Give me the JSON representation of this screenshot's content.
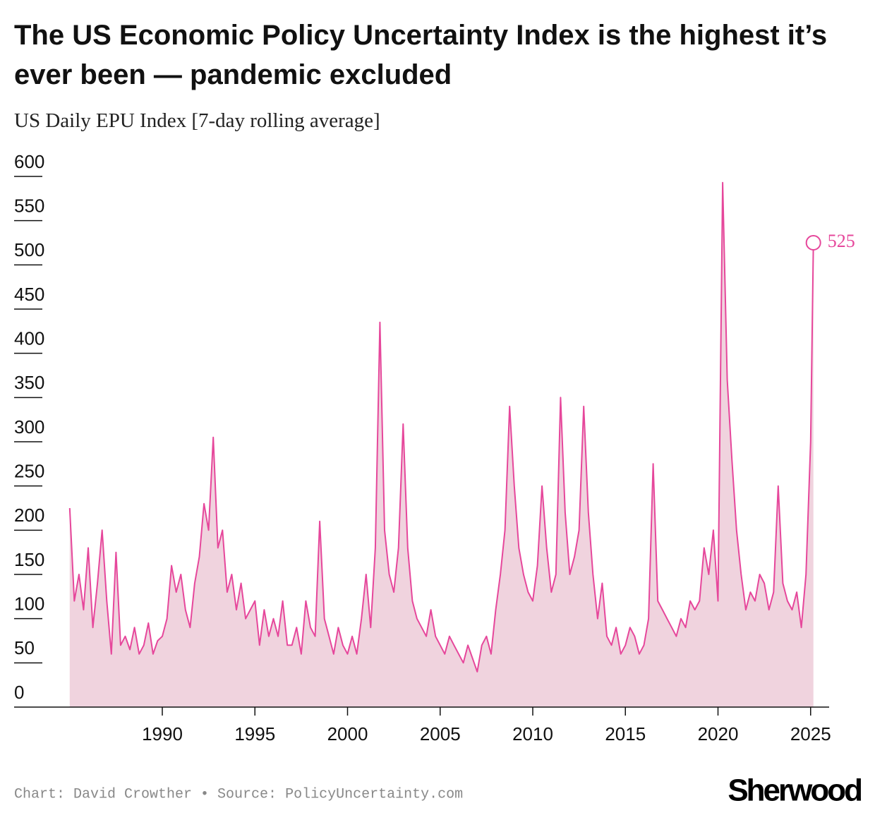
{
  "chart_data": {
    "type": "area",
    "title": "The US Economic Policy Uncertainty Index is the highest it’s ever been — pandemic excluded",
    "subtitle": "US Daily EPU Index [7-day rolling average]",
    "source": "Chart: David Crowther • Source: PolicyUncertainty.com",
    "brand": "Sherwood",
    "color": "#e6479b",
    "fill": "#f0d3de",
    "x": [
      1985,
      1985.25,
      1985.5,
      1985.75,
      1986,
      1986.25,
      1986.5,
      1986.75,
      1987,
      1987.25,
      1987.5,
      1987.75,
      1988,
      1988.25,
      1988.5,
      1988.75,
      1989,
      1989.25,
      1989.5,
      1989.75,
      1990,
      1990.25,
      1990.5,
      1990.75,
      1991,
      1991.25,
      1991.5,
      1991.75,
      1992,
      1992.25,
      1992.5,
      1992.75,
      1993,
      1993.25,
      1993.5,
      1993.75,
      1994,
      1994.25,
      1994.5,
      1994.75,
      1995,
      1995.25,
      1995.5,
      1995.75,
      1996,
      1996.25,
      1996.5,
      1996.75,
      1997,
      1997.25,
      1997.5,
      1997.75,
      1998,
      1998.25,
      1998.5,
      1998.75,
      1999,
      1999.25,
      1999.5,
      1999.75,
      2000,
      2000.25,
      2000.5,
      2000.75,
      2001,
      2001.25,
      2001.5,
      2001.75,
      2002,
      2002.25,
      2002.5,
      2002.75,
      2003,
      2003.25,
      2003.5,
      2003.75,
      2004,
      2004.25,
      2004.5,
      2004.75,
      2005,
      2005.25,
      2005.5,
      2005.75,
      2006,
      2006.25,
      2006.5,
      2006.75,
      2007,
      2007.25,
      2007.5,
      2007.75,
      2008,
      2008.25,
      2008.5,
      2008.75,
      2009,
      2009.25,
      2009.5,
      2009.75,
      2010,
      2010.25,
      2010.5,
      2010.75,
      2011,
      2011.25,
      2011.5,
      2011.75,
      2012,
      2012.25,
      2012.5,
      2012.75,
      2013,
      2013.25,
      2013.5,
      2013.75,
      2014,
      2014.25,
      2014.5,
      2014.75,
      2015,
      2015.25,
      2015.5,
      2015.75,
      2016,
      2016.25,
      2016.5,
      2016.75,
      2017,
      2017.25,
      2017.5,
      2017.75,
      2018,
      2018.25,
      2018.5,
      2018.75,
      2019,
      2019.25,
      2019.5,
      2019.75,
      2020,
      2020.25,
      2020.5,
      2020.75,
      2021,
      2021.25,
      2021.5,
      2021.75,
      2022,
      2022.25,
      2022.5,
      2022.75,
      2023,
      2023.25,
      2023.5,
      2023.75,
      2024,
      2024.25,
      2024.5,
      2024.75,
      2025,
      2025.15
    ],
    "values": [
      225,
      120,
      150,
      110,
      180,
      90,
      140,
      200,
      120,
      60,
      175,
      70,
      80,
      65,
      90,
      60,
      70,
      95,
      60,
      75,
      80,
      100,
      160,
      130,
      150,
      110,
      90,
      140,
      170,
      230,
      200,
      305,
      180,
      200,
      130,
      150,
      110,
      140,
      100,
      110,
      120,
      70,
      110,
      80,
      100,
      80,
      120,
      70,
      70,
      90,
      60,
      120,
      90,
      80,
      210,
      100,
      80,
      60,
      90,
      70,
      60,
      80,
      60,
      100,
      150,
      90,
      180,
      435,
      200,
      150,
      130,
      180,
      320,
      180,
      120,
      100,
      90,
      80,
      110,
      80,
      70,
      60,
      80,
      70,
      60,
      50,
      70,
      55,
      40,
      70,
      80,
      60,
      110,
      150,
      200,
      340,
      250,
      180,
      150,
      130,
      120,
      160,
      250,
      180,
      130,
      150,
      350,
      220,
      150,
      170,
      200,
      340,
      220,
      150,
      100,
      140,
      80,
      70,
      90,
      60,
      70,
      90,
      80,
      60,
      70,
      100,
      275,
      120,
      110,
      100,
      90,
      80,
      100,
      90,
      120,
      110,
      120,
      180,
      150,
      200,
      120,
      593,
      370,
      280,
      200,
      150,
      110,
      130,
      120,
      150,
      140,
      110,
      130,
      250,
      140,
      120,
      110,
      130,
      90,
      150,
      300,
      525
    ],
    "xlim": [
      1982,
      2026
    ],
    "ylim": [
      0,
      600
    ],
    "xticks": [
      1990,
      1995,
      2000,
      2005,
      2010,
      2015,
      2020,
      2025
    ],
    "yticks": [
      0,
      50,
      100,
      150,
      200,
      250,
      300,
      350,
      400,
      450,
      500,
      550,
      600
    ]
  }
}
